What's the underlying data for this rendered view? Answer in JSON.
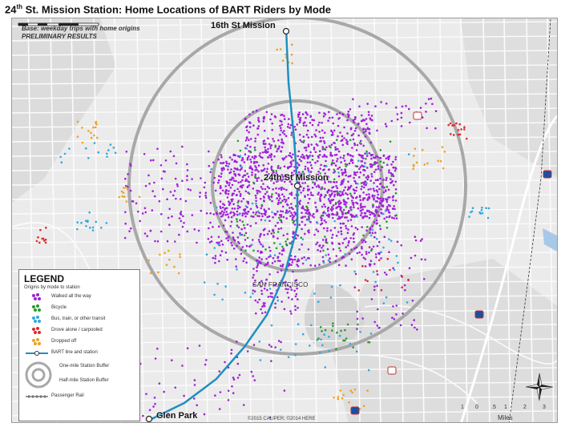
{
  "title": {
    "prefix": "24",
    "sup": "th",
    "rest": " St. Mission Station: Home Locations of BART Riders by Mode"
  },
  "base_note": [
    "Base: weekday trips with home origins",
    "PRELIMINARY RESULTS"
  ],
  "stations": {
    "north": "16th St Mission",
    "center": "24th St Mission",
    "south": "Glen Park"
  },
  "city_label": "SAN FRANCISCO",
  "credit": "©2015 CALIPER; ©2014 HERE",
  "legend": {
    "title": "LEGEND",
    "subtitle": "Origins by mode to station",
    "modes": [
      {
        "label": "Walked all the way",
        "color": "#a020d8"
      },
      {
        "label": "Bicycle",
        "color": "#2a9a2a"
      },
      {
        "label": "Bus, train, or other transit",
        "color": "#30a8e0"
      },
      {
        "label": "Drove alone / carpooled",
        "color": "#e02828"
      },
      {
        "label": "Dropped off",
        "color": "#f0a020"
      }
    ],
    "line_label": "BART line and station",
    "one_mile_label": "One-mile Station Buffer",
    "half_mile_label": "Half-mile Station Buffer",
    "rail_label": "Passenger Rail"
  },
  "scale": {
    "ticks": [
      "1",
      "0",
      ".5",
      "1",
      "2",
      "3"
    ],
    "unit": "Miles"
  },
  "compass": {
    "n": "N",
    "e": "E",
    "s": "S",
    "w": "W"
  },
  "colors": {
    "walk": "#a020d8",
    "bike": "#2a9a2a",
    "transit": "#30a8e0",
    "drive": "#e02828",
    "drop": "#f0a020",
    "bart": "#1f8fc0",
    "buffer": "#a8a8a8"
  }
}
